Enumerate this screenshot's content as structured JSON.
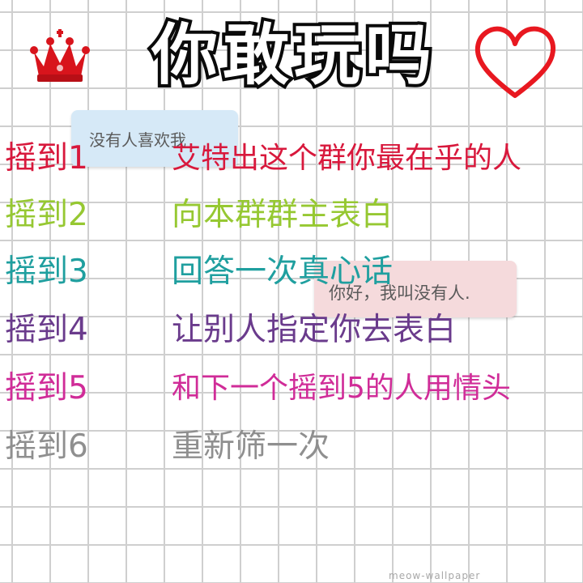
{
  "header": {
    "title": "你敢玩吗",
    "left_icon": "crown-icon",
    "right_icon": "heart-icon"
  },
  "stickers": {
    "note_top": "没有人喜欢我",
    "note_middle": "你好，我叫没有人."
  },
  "rules": [
    {
      "label": "摇到1",
      "task": "艾特出这个群你最在乎的人",
      "color": "#d8183c"
    },
    {
      "label": "摇到2",
      "task": "向本群群主表白",
      "color": "#96c832"
    },
    {
      "label": "摇到3",
      "task": "回答一次真心话",
      "color": "#1f9f9f"
    },
    {
      "label": "摇到4",
      "task": "让别人指定你去表白",
      "color": "#6a3b8c"
    },
    {
      "label": "摇到5",
      "task": "和下一个摇到5的人用情头",
      "color": "#d02c98"
    },
    {
      "label": "摇到6",
      "task": "重新筛一次",
      "color": "#8f8f8f"
    }
  ],
  "watermark": "meow-wallpaper"
}
